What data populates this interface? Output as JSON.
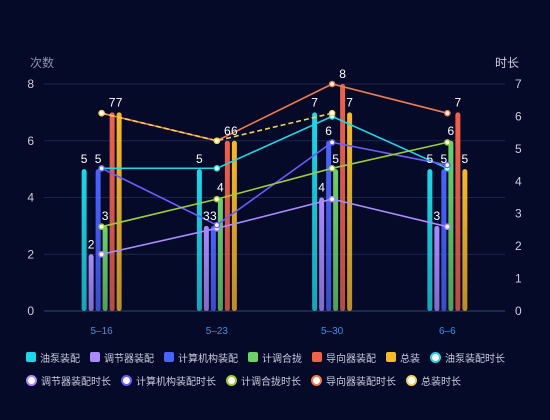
{
  "chart_data": {
    "type": "bar",
    "categories": [
      "5-16",
      "5-23",
      "5-30",
      "6-6"
    ],
    "y_left": {
      "label": "次数",
      "min": 0,
      "max": 8,
      "ticks": [
        0,
        2,
        4,
        6,
        8
      ]
    },
    "y_right": {
      "label": "时长",
      "min": 0,
      "max": 7,
      "ticks": [
        0,
        1,
        2,
        3,
        4,
        5,
        6,
        7
      ]
    },
    "bar_series": [
      {
        "name": "油泵装配",
        "color": "#1fd6e8",
        "values": [
          5,
          5,
          7,
          5
        ]
      },
      {
        "name": "调节器装配",
        "color": "#a98bff",
        "values": [
          2,
          3,
          4,
          3
        ]
      },
      {
        "name": "计算机构装配",
        "color": "#4a63ff",
        "values": [
          5,
          3,
          6,
          5
        ]
      },
      {
        "name": "计调合拢",
        "color": "#6bd16b",
        "values": [
          3,
          4,
          5,
          6
        ]
      },
      {
        "name": "导向器装配",
        "color": "#f0614c",
        "values": [
          7,
          6,
          8,
          7
        ]
      },
      {
        "name": "总装",
        "color": "#f6b92b",
        "values": [
          7,
          6,
          7,
          5
        ]
      }
    ],
    "line_series": [
      {
        "name": "油泵装配时长",
        "color": "#1fd6e8",
        "values": [
          4.4,
          4.4,
          6,
          4.4
        ]
      },
      {
        "name": "调节器装配时长",
        "color": "#a98bff",
        "values": [
          1.75,
          2.55,
          3.45,
          2.6
        ]
      },
      {
        "name": "计算机构装配时长",
        "color": "#6a5cff",
        "values": [
          4.4,
          2.65,
          5.2,
          4.5
        ]
      },
      {
        "name": "计调合拢时长",
        "color": "#9ccc3a",
        "values": [
          2.6,
          3.45,
          4.4,
          5.2
        ]
      },
      {
        "name": "导向器装配时长",
        "color": "#f07a4c",
        "values": [
          6.1,
          5.25,
          7,
          6.1
        ]
      },
      {
        "name": "总装时长",
        "color": "#f3d25a",
        "values": [
          6.1,
          5.25,
          6.1,
          null
        ],
        "dashed": true
      }
    ]
  }
}
